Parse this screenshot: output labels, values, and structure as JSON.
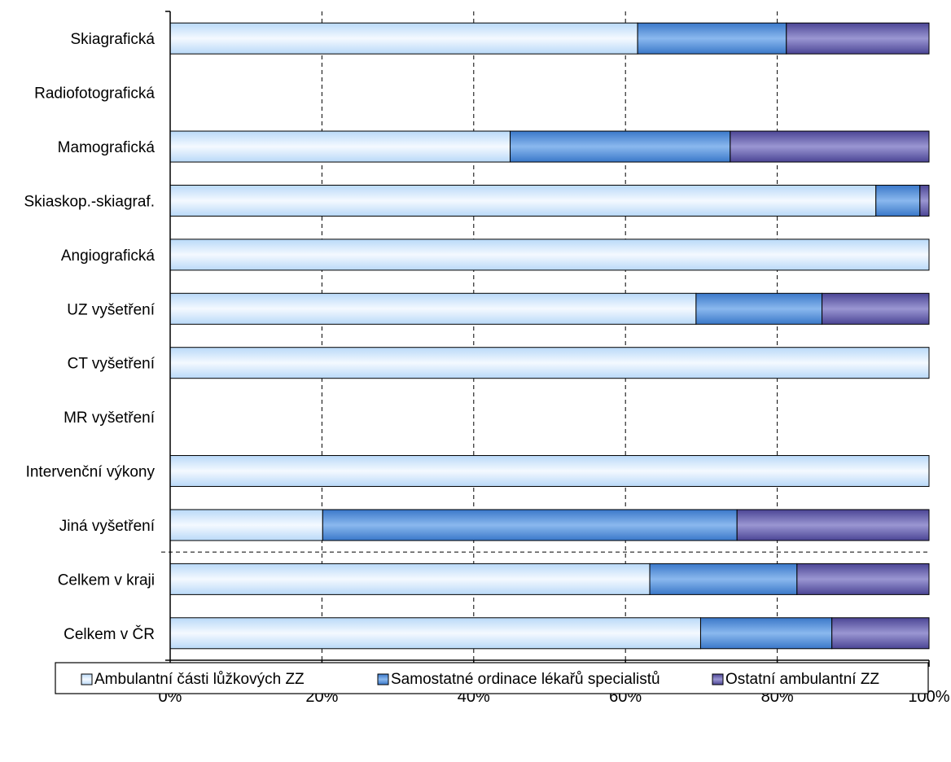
{
  "chart_data": {
    "type": "bar",
    "orientation": "horizontal",
    "stacked": true,
    "percent_stacked": true,
    "categories": [
      "Skiagrafická",
      "Radiofotografická",
      "Mamografická",
      "Skiaskop.-skiagraf.",
      "Angiografická",
      "UZ vyšetření",
      "CT vyšetření",
      "MR vyšetření",
      "Intervenční výkony",
      "Jiná vyšetření",
      "Celkem v kraji",
      "Celkem v ČR"
    ],
    "series": [
      {
        "name": "Ambulantní části lůžkových ZZ",
        "values": [
          61.6,
          0,
          44.8,
          93.0,
          100,
          69.3,
          100,
          0,
          100,
          20.1,
          63.2,
          69.9
        ]
      },
      {
        "name": "Samostatné ordinace lékařů specialistů",
        "values": [
          19.6,
          0,
          29.0,
          5.8,
          0,
          16.6,
          0,
          0,
          0,
          54.6,
          19.4,
          17.3
        ]
      },
      {
        "name": "Ostatní ambulantní ZZ",
        "values": [
          18.8,
          0,
          26.2,
          1.2,
          0,
          14.1,
          0,
          0,
          0,
          25.3,
          17.4,
          12.8
        ]
      }
    ],
    "series_colors": [
      "#cfe6fb",
      "#5b93d9",
      "#6c67b2"
    ],
    "xlim": [
      0,
      100
    ],
    "xticks": [
      "0%",
      "20%",
      "40%",
      "60%",
      "80%",
      "100%"
    ],
    "grid": "vertical dashed",
    "separator_after_category": "Jiná vyšetření",
    "legend_position": "bottom"
  }
}
